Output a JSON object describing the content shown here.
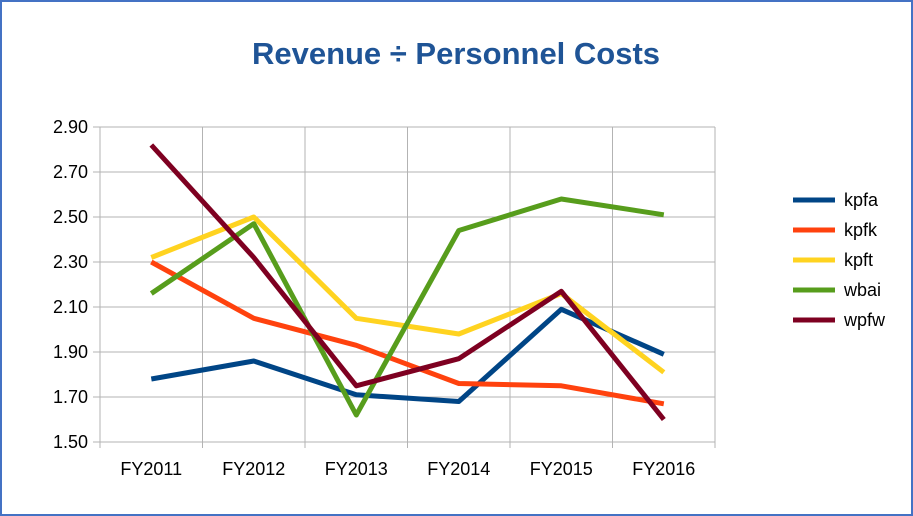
{
  "chart_data": {
    "type": "line",
    "title": "Revenue ÷ Personnel Costs",
    "xlabel": "",
    "ylabel": "",
    "categories": [
      "FY2011",
      "FY2012",
      "FY2013",
      "FY2014",
      "FY2015",
      "FY2016"
    ],
    "ylim": [
      1.5,
      2.9
    ],
    "yticks": [
      "1.50",
      "1.70",
      "1.90",
      "2.10",
      "2.30",
      "2.50",
      "2.70",
      "2.90"
    ],
    "grid": true,
    "legend_position": "right",
    "series": [
      {
        "name": "kpfa",
        "color": "#004586",
        "values": [
          1.78,
          1.86,
          1.71,
          1.68,
          2.09,
          1.89
        ]
      },
      {
        "name": "kpfk",
        "color": "#ff420e",
        "values": [
          2.3,
          2.05,
          1.93,
          1.76,
          1.75,
          1.67
        ]
      },
      {
        "name": "kpft",
        "color": "#ffd320",
        "values": [
          2.32,
          2.5,
          2.05,
          1.98,
          2.16,
          1.81
        ]
      },
      {
        "name": "wbai",
        "color": "#579d1c",
        "values": [
          2.16,
          2.47,
          1.62,
          2.44,
          2.58,
          2.51
        ]
      },
      {
        "name": "wpfw",
        "color": "#7e0021",
        "values": [
          2.82,
          2.32,
          1.75,
          1.87,
          2.17,
          1.6
        ]
      }
    ]
  }
}
